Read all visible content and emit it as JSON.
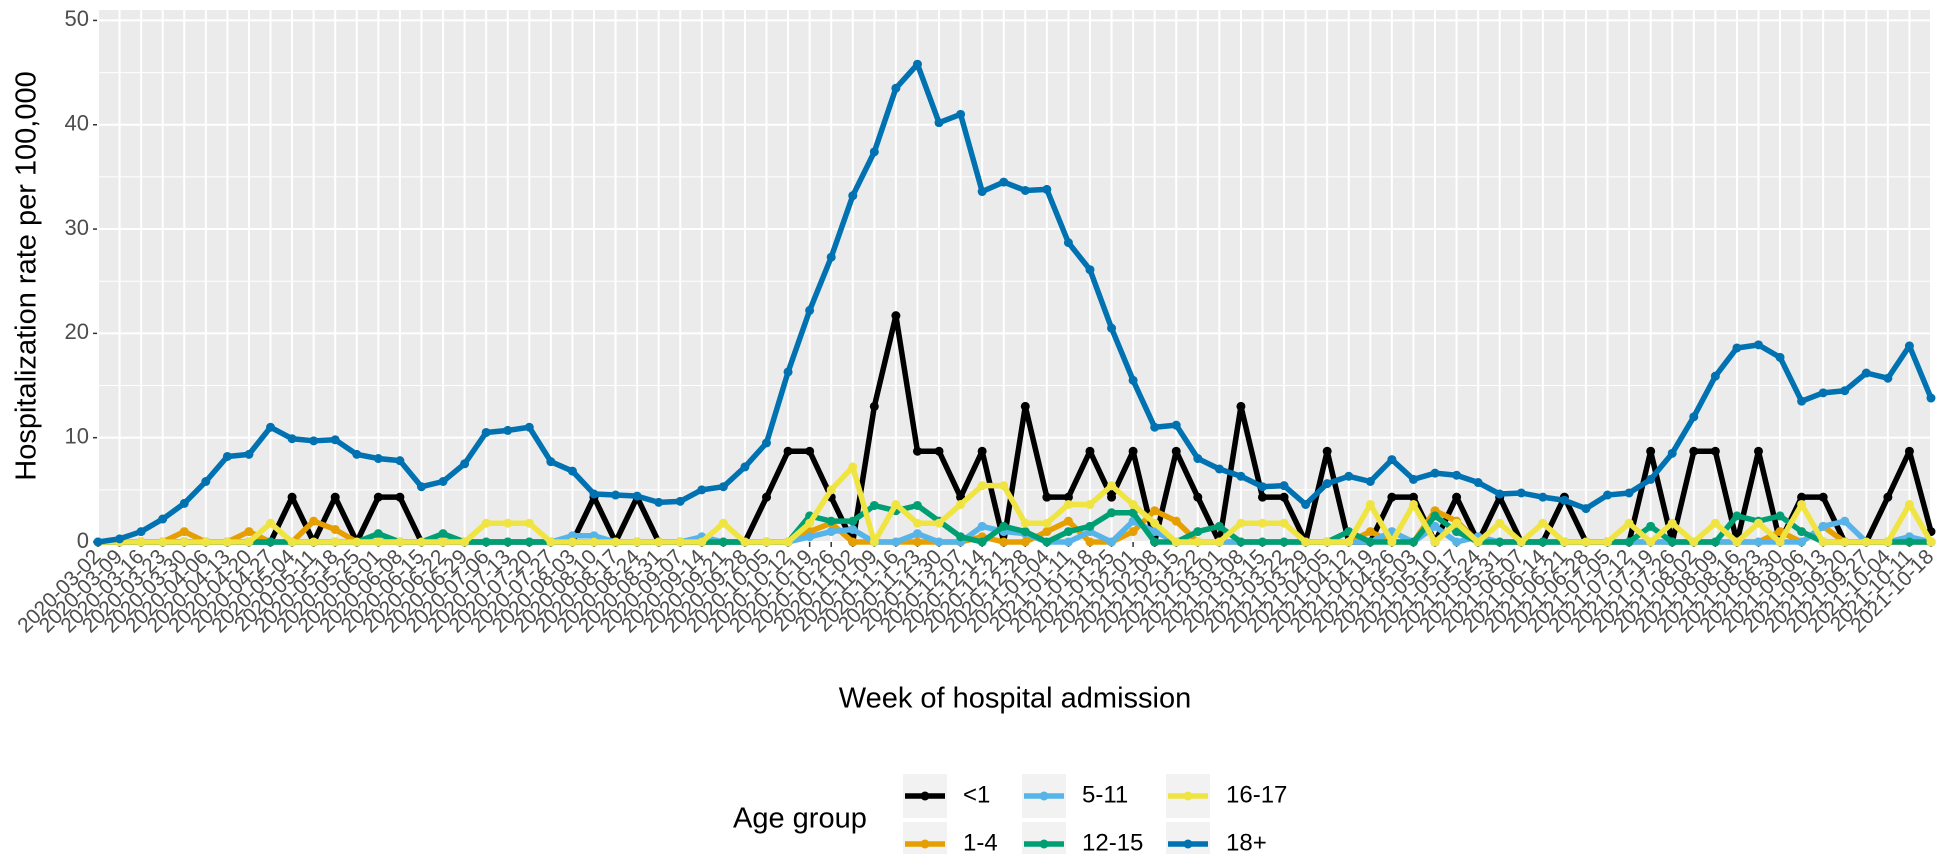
{
  "chart_data": {
    "type": "line",
    "x_label": "Week of hospital admission",
    "y_label": "Hospitalization rate per 100,000",
    "legend_title": "Age group",
    "legend_position": "bottom",
    "grid": true,
    "categories": [
      "2020-03-02",
      "2020-03-09",
      "2020-03-16",
      "2020-03-23",
      "2020-03-30",
      "2020-04-06",
      "2020-04-13",
      "2020-04-20",
      "2020-04-27",
      "2020-05-04",
      "2020-05-11",
      "2020-05-18",
      "2020-05-25",
      "2020-06-01",
      "2020-06-08",
      "2020-06-15",
      "2020-06-22",
      "2020-06-29",
      "2020-07-06",
      "2020-07-13",
      "2020-07-20",
      "2020-07-27",
      "2020-08-03",
      "2020-08-10",
      "2020-08-17",
      "2020-08-24",
      "2020-08-31",
      "2020-09-07",
      "2020-09-14",
      "2020-09-21",
      "2020-09-28",
      "2020-10-05",
      "2020-10-12",
      "2020-10-19",
      "2020-10-26",
      "2020-11-02",
      "2020-11-09",
      "2020-11-16",
      "2020-11-23",
      "2020-11-30",
      "2020-12-07",
      "2020-12-14",
      "2020-12-21",
      "2020-12-28",
      "2021-01-04",
      "2021-01-11",
      "2021-01-18",
      "2021-01-25",
      "2021-02-01",
      "2021-02-08",
      "2021-02-15",
      "2021-02-22",
      "2021-03-01",
      "2021-03-08",
      "2021-03-15",
      "2021-03-22",
      "2021-03-29",
      "2021-04-05",
      "2021-04-12",
      "2021-04-19",
      "2021-04-26",
      "2021-05-03",
      "2021-05-10",
      "2021-05-17",
      "2021-05-24",
      "2021-05-31",
      "2021-06-07",
      "2021-06-14",
      "2021-06-21",
      "2021-06-28",
      "2021-07-05",
      "2021-07-12",
      "2021-07-19",
      "2021-07-26",
      "2021-08-02",
      "2021-08-09",
      "2021-08-16",
      "2021-08-23",
      "2021-08-30",
      "2021-09-06",
      "2021-09-13",
      "2021-09-20",
      "2021-09-27",
      "2021-10-04",
      "2021-10-11",
      "2021-10-18"
    ],
    "series": [
      {
        "name": "<1",
        "color": "#000000",
        "values": [
          0,
          0,
          0,
          0,
          0,
          0,
          0,
          0,
          0,
          4.3,
          0,
          4.3,
          0,
          4.3,
          4.3,
          0,
          0,
          0,
          0,
          0,
          0,
          0,
          0,
          4.3,
          0,
          4.3,
          0,
          0,
          0,
          0,
          0,
          4.3,
          8.7,
          8.7,
          4.3,
          0,
          13,
          21.7,
          8.7,
          8.7,
          4.3,
          8.7,
          0,
          13,
          4.3,
          4.3,
          8.7,
          4.3,
          8.7,
          0,
          8.7,
          4.3,
          0,
          13,
          4.3,
          4.3,
          0,
          8.7,
          0,
          0,
          4.3,
          4.3,
          0,
          4.3,
          0,
          4.3,
          0,
          0,
          4.3,
          0,
          0,
          0,
          8.7,
          0,
          8.7,
          8.7,
          0,
          8.7,
          0,
          4.3,
          4.3,
          0,
          0,
          4.3,
          8.7,
          1
        ]
      },
      {
        "name": "1-4",
        "color": "#E69F00",
        "values": [
          0,
          0,
          0,
          0,
          1,
          0,
          0,
          1,
          0,
          0,
          2,
          1.2,
          0,
          0,
          0,
          0,
          0,
          0,
          0,
          0,
          0,
          0,
          0,
          0,
          0,
          0,
          0,
          0,
          0,
          0,
          0,
          0,
          0,
          1,
          1.8,
          0,
          0,
          0,
          0,
          0,
          0,
          0.5,
          0,
          0,
          1,
          2,
          0,
          0,
          1,
          3,
          2,
          0,
          0,
          0,
          0,
          0,
          0,
          0,
          0,
          1,
          0,
          0,
          3,
          2,
          0,
          0,
          0,
          0,
          0,
          0,
          0,
          0,
          0,
          0,
          0,
          0,
          0,
          0,
          1,
          0,
          1.5,
          0,
          0,
          0,
          0,
          0
        ]
      },
      {
        "name": "5-11",
        "color": "#56B4E9",
        "values": [
          0,
          0,
          0,
          0,
          0,
          0,
          0,
          0,
          0,
          0,
          0,
          0,
          0,
          0,
          0,
          0,
          0,
          0,
          0,
          0,
          0,
          0,
          0.6,
          0.6,
          0,
          0,
          0,
          0,
          0.5,
          0,
          0,
          0,
          0,
          0.5,
          1,
          1.2,
          0,
          0,
          0.8,
          0,
          0,
          1.5,
          1,
          0.8,
          0,
          0,
          1,
          0,
          2,
          1,
          0,
          0,
          0,
          0,
          0,
          0,
          0,
          0,
          0,
          0,
          1,
          0,
          1.5,
          0,
          0.5,
          0,
          0,
          0,
          0,
          0,
          0,
          0,
          0,
          0,
          0,
          0,
          0,
          0,
          0,
          0,
          1.5,
          2,
          0,
          0,
          0.5,
          0
        ]
      },
      {
        "name": "12-15",
        "color": "#009E73",
        "values": [
          0,
          0,
          0,
          0,
          0,
          0,
          0,
          0,
          0,
          0,
          0,
          0,
          0,
          0.8,
          0,
          0,
          0.8,
          0,
          0,
          0,
          0,
          0,
          0,
          0,
          0,
          0,
          0,
          0,
          0,
          0,
          0,
          0,
          0,
          2.5,
          2,
          2,
          3.5,
          3,
          3.5,
          2,
          0.5,
          0,
          1.5,
          1,
          0,
          1,
          1.5,
          2.8,
          2.8,
          0,
          0,
          1,
          1.5,
          0,
          0,
          0,
          0,
          0,
          1,
          0,
          0,
          0,
          2.5,
          1,
          0,
          0,
          0,
          0,
          0,
          0,
          0,
          0,
          1.5,
          0,
          0,
          0,
          2.5,
          2,
          2.5,
          1,
          0,
          0,
          0,
          0,
          0,
          0
        ]
      },
      {
        "name": "16-17",
        "color": "#F0E442",
        "values": [
          0,
          0,
          0,
          0,
          0,
          0,
          0,
          0,
          1.8,
          0,
          0,
          0,
          0,
          0,
          0,
          0,
          0,
          0,
          1.8,
          1.8,
          1.8,
          0,
          0,
          0,
          0,
          0,
          0,
          0,
          0,
          1.8,
          0,
          0,
          0,
          1.8,
          5,
          7.2,
          0,
          3.6,
          1.8,
          1.8,
          3.6,
          5.4,
          5.4,
          1.8,
          1.8,
          3.6,
          3.6,
          5.4,
          3.6,
          1.8,
          0,
          0,
          0,
          1.8,
          1.8,
          1.8,
          0,
          0,
          0,
          3.6,
          0,
          3.6,
          0,
          1.8,
          0,
          1.8,
          0,
          1.8,
          0,
          0,
          0,
          1.8,
          0,
          1.8,
          0,
          1.8,
          0,
          1.8,
          0,
          3.6,
          0,
          0,
          0,
          0,
          3.6,
          0
        ]
      },
      {
        "name": "18+",
        "color": "#0072B2",
        "values": [
          0,
          0.3,
          1,
          2.2,
          3.7,
          5.8,
          8.2,
          8.4,
          11,
          9.9,
          9.7,
          9.8,
          8.4,
          8,
          7.8,
          5.3,
          5.8,
          7.5,
          10.5,
          10.7,
          11,
          7.7,
          6.8,
          4.6,
          4.5,
          4.4,
          3.8,
          3.9,
          5,
          5.3,
          7.2,
          9.5,
          16.3,
          22.2,
          27.3,
          33.2,
          37.4,
          43.5,
          45.8,
          40.2,
          41,
          33.6,
          34.5,
          33.7,
          33.8,
          28.7,
          26.1,
          20.5,
          15.5,
          11,
          11.2,
          8,
          7,
          6.3,
          5.3,
          5.4,
          3.6,
          5.6,
          6.3,
          5.8,
          7.9,
          6,
          6.6,
          6.4,
          5.7,
          4.6,
          4.7,
          4.3,
          4,
          3.2,
          4.5,
          4.7,
          6,
          8.5,
          12,
          15.9,
          18.6,
          18.9,
          17.7,
          13.5,
          14.3,
          14.5,
          16.2,
          15.7,
          18.8,
          13.8
        ]
      }
    ],
    "ylim": [
      0,
      51
    ],
    "yticks": [
      0,
      10,
      20,
      30,
      40,
      50
    ]
  }
}
